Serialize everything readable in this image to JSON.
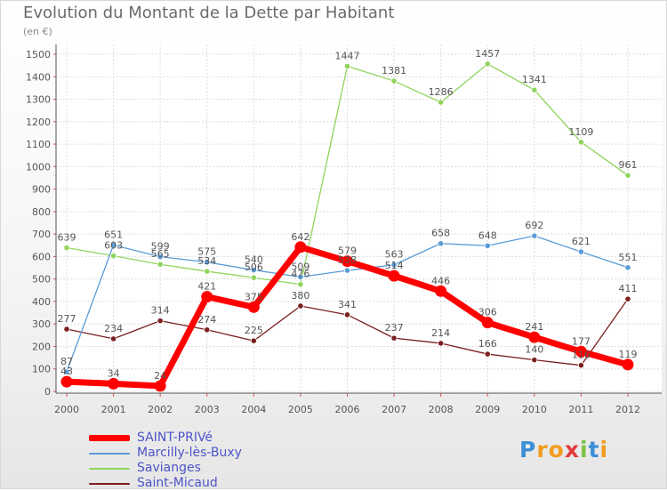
{
  "title": "Evolution du Montant de la Dette par Habitant",
  "subtitle": "(en €)",
  "logo": {
    "text": "Proxiti",
    "letters": [
      "P",
      "r",
      "o",
      "x",
      "i",
      "t",
      "i"
    ],
    "colors": [
      "#3b8fd6",
      "#f39c1e",
      "#f39c1e",
      "#e23b3b",
      "#7cc242",
      "#3b8fd6",
      "#f39c1e"
    ]
  },
  "chart_data": {
    "type": "line",
    "title": "Evolution du Montant de la Dette par Habitant",
    "ylabel": "(en €)",
    "xlabel": "",
    "ylim": [
      0,
      1500
    ],
    "yticks": [
      0,
      100,
      200,
      300,
      400,
      500,
      600,
      700,
      800,
      900,
      1000,
      1100,
      1200,
      1300,
      1400,
      1500
    ],
    "x": [
      "2000",
      "2001",
      "2002",
      "2003",
      "2004",
      "2005",
      "2006",
      "2007",
      "2008",
      "2009",
      "2010",
      "2011",
      "2012"
    ],
    "grid": true,
    "legend_position": "bottom-left",
    "series": [
      {
        "name": "Saint-Micaud",
        "color": "#7b1f1f",
        "values": [
          277,
          234,
          314,
          274,
          225,
          380,
          341,
          237,
          214,
          166,
          140,
          116,
          411
        ],
        "labels": [
          "277",
          "234",
          "314",
          "274",
          "225",
          "380",
          "341",
          "237",
          "214",
          "166",
          "140",
          "116",
          "411"
        ]
      },
      {
        "name": "Savianges",
        "color": "#8fd45b",
        "values": [
          639,
          603,
          565,
          534,
          506,
          476,
          1447,
          1381,
          1286,
          1457,
          1341,
          1109,
          961
        ],
        "labels": [
          "639",
          "603",
          "565",
          "534",
          "506",
          "476",
          "1447",
          "1381",
          "1286",
          "1457",
          "1341",
          "1109",
          "961"
        ]
      },
      {
        "name": "Marcilly-lès-Buxy",
        "color": "#5a9bd6",
        "values": [
          87,
          651,
          599,
          575,
          540,
          509,
          538,
          563,
          658,
          648,
          692,
          621,
          551
        ],
        "labels": [
          "87",
          "651",
          "599",
          "575",
          "540",
          "509",
          "538",
          "563",
          "658",
          "648",
          "692",
          "621",
          "551"
        ]
      },
      {
        "name": "SAINT-PRIVé",
        "color": "#ff0000",
        "values": [
          43,
          34,
          24,
          421,
          375,
          642,
          579,
          514,
          446,
          306,
          241,
          177,
          119
        ],
        "labels": [
          "43",
          "34",
          "24",
          "421",
          "375",
          "642",
          "579",
          "514",
          "446",
          "306",
          "241",
          "177",
          "119"
        ]
      }
    ]
  },
  "legend": [
    {
      "label": "SAINT-PRIVé",
      "color": "#ff0000"
    },
    {
      "label": "Marcilly-lès-Buxy",
      "color": "#5a9bd6"
    },
    {
      "label": "Savianges",
      "color": "#8fd45b"
    },
    {
      "label": "Saint-Micaud",
      "color": "#7b1f1f"
    }
  ]
}
